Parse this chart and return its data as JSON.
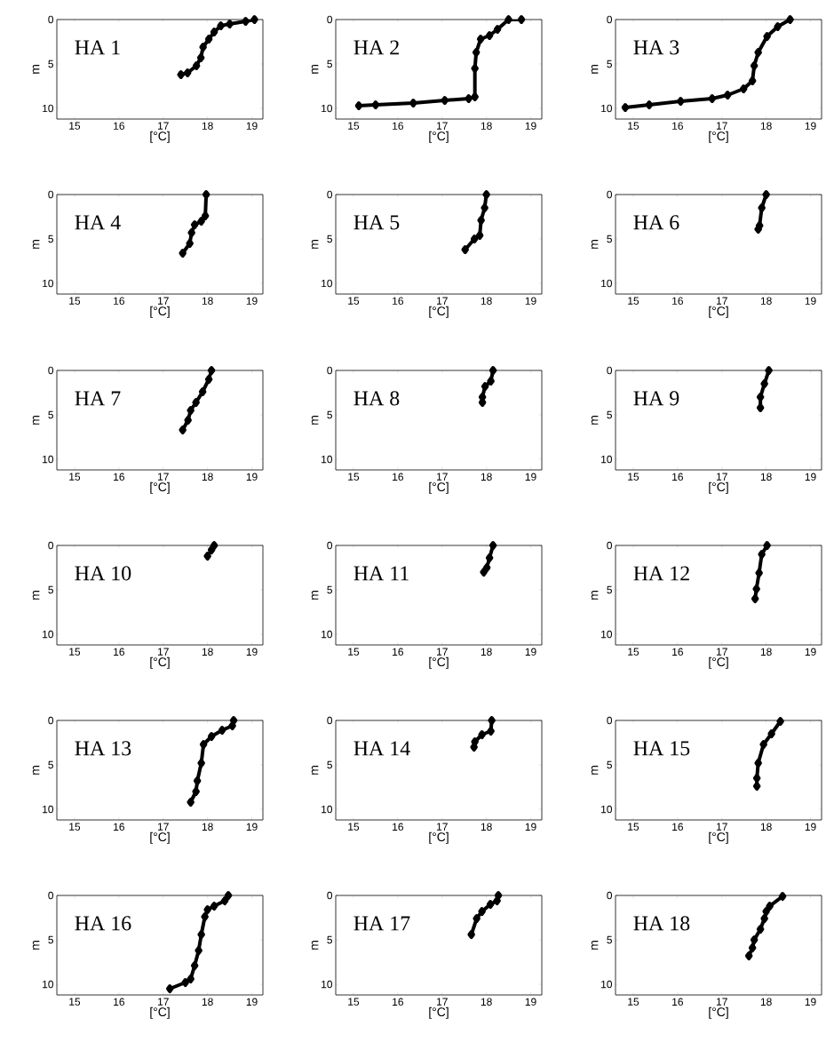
{
  "chart_data": [
    {
      "type": "line",
      "title": "HA 1",
      "xlabel": "[°C]",
      "ylabel": "m",
      "color": "#000000",
      "marker": "diamond",
      "xlim": [
        14.6,
        19.25
      ],
      "ylim": [
        11.2,
        0
      ],
      "xticks": [
        15,
        16,
        17,
        18,
        19
      ],
      "yticks": [
        0,
        5,
        10
      ],
      "x": [
        19.06,
        18.86,
        18.5,
        18.3,
        18.15,
        18.03,
        17.9,
        17.85,
        17.75,
        17.55,
        17.4
      ],
      "values": [
        0,
        0.2,
        0.5,
        0.7,
        1.4,
        2.2,
        3.1,
        4.3,
        5.2,
        6.0,
        6.2
      ]
    },
    {
      "type": "line",
      "title": "HA 2",
      "xlabel": "[°C]",
      "ylabel": "m",
      "color": "#000000",
      "marker": "diamond",
      "xlim": [
        14.6,
        19.25
      ],
      "ylim": [
        11.2,
        0
      ],
      "xticks": [
        15,
        16,
        17,
        18,
        19
      ],
      "yticks": [
        0,
        5,
        10
      ],
      "x": [
        18.79,
        18.5,
        18.25,
        18.07,
        17.87,
        17.77,
        17.74,
        17.74,
        17.6,
        17.06,
        16.35,
        15.5,
        15.12
      ],
      "values": [
        0,
        0,
        1.1,
        1.8,
        2.2,
        3.7,
        5.5,
        8.7,
        8.9,
        9.1,
        9.4,
        9.6,
        9.7
      ]
    },
    {
      "type": "line",
      "title": "HA 3",
      "xlabel": "[°C]",
      "ylabel": "m",
      "color": "#000000",
      "marker": "diamond",
      "xlim": [
        14.6,
        19.25
      ],
      "ylim": [
        11.2,
        0
      ],
      "xticks": [
        15,
        16,
        17,
        18,
        19
      ],
      "yticks": [
        0,
        5,
        10
      ],
      "x": [
        18.54,
        18.26,
        18.02,
        17.82,
        17.73,
        17.69,
        17.49,
        17.13,
        16.78,
        16.07,
        15.36,
        14.82
      ],
      "values": [
        0,
        0.8,
        1.9,
        3.7,
        5.2,
        6.9,
        7.8,
        8.5,
        8.9,
        9.2,
        9.6,
        9.9
      ]
    },
    {
      "type": "line",
      "title": "HA 4",
      "xlabel": "[°C]",
      "ylabel": "m",
      "color": "#000000",
      "marker": "diamond",
      "xlim": [
        14.6,
        19.25
      ],
      "ylim": [
        11.2,
        0
      ],
      "xticks": [
        15,
        16,
        17,
        18,
        19
      ],
      "yticks": [
        0,
        5,
        10
      ],
      "x": [
        17.97,
        17.95,
        17.86,
        17.71,
        17.64,
        17.6,
        17.44
      ],
      "values": [
        0,
        2.4,
        3.0,
        3.4,
        4.3,
        5.5,
        6.6
      ]
    },
    {
      "type": "line",
      "title": "HA 5",
      "xlabel": "[°C]",
      "ylabel": "m",
      "color": "#000000",
      "marker": "diamond",
      "xlim": [
        14.6,
        19.25
      ],
      "ylim": [
        11.2,
        0
      ],
      "xticks": [
        15,
        16,
        17,
        18,
        19
      ],
      "yticks": [
        0,
        5,
        10
      ],
      "x": [
        18.0,
        17.96,
        17.88,
        17.85,
        17.73,
        17.52
      ],
      "values": [
        0,
        1.5,
        2.9,
        4.6,
        5.0,
        6.2
      ]
    },
    {
      "type": "line",
      "title": "HA 6",
      "xlabel": "[°C]",
      "ylabel": "m",
      "color": "#000000",
      "marker": "diamond",
      "xlim": [
        14.6,
        19.25
      ],
      "ylim": [
        11.2,
        0
      ],
      "xticks": [
        15,
        16,
        17,
        18,
        19
      ],
      "yticks": [
        0,
        5,
        10
      ],
      "x": [
        18.0,
        17.9,
        17.85,
        17.82
      ],
      "values": [
        0,
        1.5,
        3.5,
        3.9
      ]
    },
    {
      "type": "line",
      "title": "HA 7",
      "xlabel": "[°C]",
      "ylabel": "m",
      "color": "#000000",
      "marker": "diamond",
      "xlim": [
        14.6,
        19.25
      ],
      "ylim": [
        11.2,
        0
      ],
      "xticks": [
        15,
        16,
        17,
        18,
        19
      ],
      "yticks": [
        0,
        5,
        10
      ],
      "x": [
        18.09,
        18.03,
        17.89,
        17.74,
        17.62,
        17.56,
        17.44
      ],
      "values": [
        0,
        1.0,
        2.4,
        3.6,
        4.5,
        5.6,
        6.7
      ]
    },
    {
      "type": "line",
      "title": "HA 8",
      "xlabel": "[°C]",
      "ylabel": "m",
      "color": "#000000",
      "marker": "diamond",
      "xlim": [
        14.6,
        19.25
      ],
      "ylim": [
        11.2,
        0
      ],
      "xticks": [
        15,
        16,
        17,
        18,
        19
      ],
      "yticks": [
        0,
        5,
        10
      ],
      "x": [
        18.15,
        18.1,
        17.97,
        17.91,
        17.91
      ],
      "values": [
        0,
        1.2,
        1.8,
        3.0,
        3.6
      ]
    },
    {
      "type": "line",
      "title": "HA 9",
      "xlabel": "[°C]",
      "ylabel": "m",
      "color": "#000000",
      "marker": "diamond",
      "xlim": [
        14.6,
        19.25
      ],
      "ylim": [
        11.2,
        0
      ],
      "xticks": [
        15,
        16,
        17,
        18,
        19
      ],
      "yticks": [
        0,
        5,
        10
      ],
      "x": [
        18.06,
        17.96,
        17.87,
        17.87
      ],
      "values": [
        0,
        1.5,
        3.0,
        4.2
      ]
    },
    {
      "type": "line",
      "title": "HA 10",
      "xlabel": "[°C]",
      "ylabel": "m",
      "color": "#000000",
      "marker": "diamond",
      "xlim": [
        14.6,
        19.25
      ],
      "ylim": [
        11.2,
        0
      ],
      "xticks": [
        15,
        16,
        17,
        18,
        19
      ],
      "yticks": [
        0,
        5,
        10
      ],
      "x": [
        18.15,
        18.09,
        18.0
      ],
      "values": [
        0,
        0.5,
        1.2
      ]
    },
    {
      "type": "line",
      "title": "HA 11",
      "xlabel": "[°C]",
      "ylabel": "m",
      "color": "#000000",
      "marker": "diamond",
      "xlim": [
        14.6,
        19.25
      ],
      "ylim": [
        11.2,
        0
      ],
      "xticks": [
        15,
        16,
        17,
        18,
        19
      ],
      "yticks": [
        0,
        5,
        10
      ],
      "x": [
        18.15,
        18.07,
        18.01,
        17.94
      ],
      "values": [
        0,
        1.4,
        2.5,
        3.0
      ]
    },
    {
      "type": "line",
      "title": "HA 12",
      "xlabel": "[°C]",
      "ylabel": "m",
      "color": "#000000",
      "marker": "diamond",
      "xlim": [
        14.6,
        19.25
      ],
      "ylim": [
        11.2,
        0
      ],
      "xticks": [
        15,
        16,
        17,
        18,
        19
      ],
      "yticks": [
        0,
        5,
        10
      ],
      "x": [
        18.02,
        17.9,
        17.84,
        17.78,
        17.75
      ],
      "values": [
        0,
        1.0,
        3.1,
        4.9,
        6.0
      ]
    },
    {
      "type": "line",
      "title": "HA 13",
      "xlabel": "[°C]",
      "ylabel": "m",
      "color": "#000000",
      "marker": "diamond",
      "xlim": [
        14.6,
        19.25
      ],
      "ylim": [
        11.2,
        0
      ],
      "xticks": [
        15,
        16,
        17,
        18,
        19
      ],
      "yticks": [
        0,
        5,
        10
      ],
      "x": [
        18.59,
        18.56,
        18.33,
        18.09,
        17.91,
        17.86,
        17.77,
        17.74,
        17.62
      ],
      "values": [
        0,
        0.6,
        1.1,
        1.8,
        2.7,
        4.8,
        6.8,
        8.0,
        9.2
      ]
    },
    {
      "type": "line",
      "title": "HA 14",
      "xlabel": "[°C]",
      "ylabel": "m",
      "color": "#000000",
      "marker": "diamond",
      "xlim": [
        14.6,
        19.25
      ],
      "ylim": [
        11.2,
        0
      ],
      "xticks": [
        15,
        16,
        17,
        18,
        19
      ],
      "yticks": [
        0,
        5,
        10
      ],
      "x": [
        18.12,
        18.1,
        17.9,
        17.74,
        17.72
      ],
      "values": [
        0,
        1.2,
        1.6,
        2.4,
        3.0
      ]
    },
    {
      "type": "line",
      "title": "HA 15",
      "xlabel": "[°C]",
      "ylabel": "m",
      "color": "#000000",
      "marker": "diamond",
      "xlim": [
        14.6,
        19.25
      ],
      "ylim": [
        11.2,
        0
      ],
      "xticks": [
        15,
        16,
        17,
        18,
        19
      ],
      "yticks": [
        0,
        5,
        10
      ],
      "x": [
        18.32,
        18.12,
        17.94,
        17.82,
        17.79,
        17.79
      ],
      "values": [
        0.1,
        1.5,
        2.7,
        4.8,
        6.5,
        7.4
      ]
    },
    {
      "type": "line",
      "title": "HA 16",
      "xlabel": "[°C]",
      "ylabel": "m",
      "color": "#000000",
      "marker": "diamond",
      "xlim": [
        14.6,
        19.25
      ],
      "ylim": [
        11.2,
        0
      ],
      "xticks": [
        15,
        16,
        17,
        18,
        19
      ],
      "yticks": [
        0,
        5,
        10
      ],
      "x": [
        18.47,
        18.39,
        18.15,
        18.0,
        17.94,
        17.86,
        17.8,
        17.71,
        17.62,
        17.5,
        17.15
      ],
      "values": [
        0,
        0.6,
        1.2,
        1.6,
        2.4,
        4.4,
        6.2,
        7.9,
        9.4,
        9.8,
        10.5
      ]
    },
    {
      "type": "line",
      "title": "HA 17",
      "xlabel": "[°C]",
      "ylabel": "m",
      "color": "#000000",
      "marker": "diamond",
      "xlim": [
        14.6,
        19.25
      ],
      "ylim": [
        11.2,
        0
      ],
      "xticks": [
        15,
        16,
        17,
        18,
        19
      ],
      "yticks": [
        0,
        5,
        10
      ],
      "x": [
        18.27,
        18.24,
        18.09,
        17.9,
        17.78,
        17.66
      ],
      "values": [
        0,
        0.6,
        1.0,
        1.8,
        2.6,
        4.4
      ]
    },
    {
      "type": "line",
      "title": "HA 18",
      "xlabel": "[°C]",
      "ylabel": "m",
      "color": "#000000",
      "marker": "diamond",
      "xlim": [
        14.6,
        19.25
      ],
      "ylim": [
        11.2,
        0
      ],
      "xticks": [
        15,
        16,
        17,
        18,
        19
      ],
      "yticks": [
        0,
        5,
        10
      ],
      "x": [
        18.37,
        18.08,
        18.0,
        17.96,
        17.87,
        17.73,
        17.69,
        17.61
      ],
      "values": [
        0.1,
        1.2,
        1.8,
        2.6,
        3.8,
        5.0,
        5.9,
        6.8
      ]
    }
  ]
}
